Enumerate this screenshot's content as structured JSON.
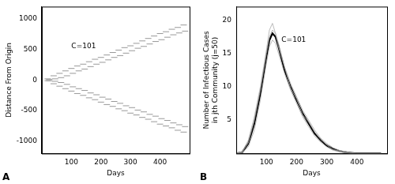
{
  "chart_data": [
    {
      "type": "scatter",
      "title": "A",
      "x_label": "Days",
      "y_label": "Distance From Origin",
      "annotations": [
        {
          "text": "C=101",
          "x": 100,
          "y": 550
        }
      ],
      "xlim": [
        0,
        500
      ],
      "xticks": [
        100,
        200,
        300,
        400
      ],
      "ylim": [
        -1200,
        1200
      ],
      "yticks": [
        -1000,
        -500,
        0,
        500,
        1000
      ],
      "grid": false,
      "series": [
        {
          "color": "#999999",
          "marker": "dash",
          "x": [
            20,
            25,
            40,
            45,
            60,
            65,
            80,
            85,
            100,
            105,
            120,
            125,
            140,
            145,
            160,
            165,
            180,
            185,
            200,
            205,
            220,
            225,
            240,
            245,
            260,
            265,
            280,
            285,
            300,
            305,
            320,
            325,
            340,
            345,
            360,
            365,
            380,
            385,
            400,
            405,
            420,
            425,
            440,
            445,
            460,
            465,
            480,
            485
          ],
          "values": [
            20,
            -10,
            70,
            20,
            110,
            40,
            150,
            70,
            190,
            110,
            230,
            150,
            260,
            180,
            300,
            220,
            340,
            260,
            370,
            290,
            410,
            330,
            450,
            370,
            490,
            400,
            530,
            440,
            560,
            480,
            600,
            520,
            640,
            550,
            680,
            590,
            720,
            630,
            760,
            660,
            790,
            700,
            830,
            740,
            860,
            770,
            900,
            800
          ]
        },
        {
          "color": "#999999",
          "marker": "dash",
          "x": [
            20,
            25,
            40,
            45,
            60,
            65,
            80,
            85,
            100,
            105,
            120,
            125,
            140,
            145,
            160,
            165,
            180,
            185,
            200,
            205,
            220,
            225,
            240,
            245,
            260,
            265,
            280,
            285,
            300,
            305,
            320,
            325,
            340,
            345,
            360,
            365,
            380,
            385,
            400,
            405,
            420,
            425,
            440,
            445,
            460,
            465,
            480,
            485
          ],
          "values": [
            -10,
            10,
            -60,
            -20,
            -100,
            -40,
            -140,
            -70,
            -180,
            -110,
            -220,
            -140,
            -250,
            -170,
            -290,
            -210,
            -320,
            -240,
            -360,
            -280,
            -400,
            -310,
            -430,
            -350,
            -470,
            -380,
            -500,
            -420,
            -540,
            -450,
            -570,
            -490,
            -610,
            -520,
            -640,
            -560,
            -680,
            -590,
            -720,
            -630,
            -750,
            -660,
            -780,
            -700,
            -820,
            -730,
            -850,
            -760
          ]
        }
      ]
    },
    {
      "type": "line",
      "title": "B",
      "x_label": "Days",
      "y_label": "Number of Infectious Cases in jth Community (j=50)",
      "annotations": [
        {
          "text": "C=101",
          "x": 150,
          "y": 17
        }
      ],
      "xlim": [
        0,
        500
      ],
      "xticks": [
        100,
        200,
        300,
        400
      ],
      "ylim": [
        0,
        22
      ],
      "yticks": [
        5,
        10,
        15,
        20
      ],
      "grid": false,
      "series": [
        {
          "color": "#aaaaaa",
          "line_style": "solid",
          "x": [
            0,
            20,
            40,
            60,
            80,
            100,
            110,
            120,
            130,
            140,
            160,
            180,
            200,
            220,
            240,
            260,
            280,
            300,
            320,
            340,
            360,
            380,
            400,
            440,
            480
          ],
          "values": [
            0,
            0.3,
            2,
            5.5,
            10,
            15.5,
            18.5,
            19.5,
            18,
            16.5,
            13,
            10.5,
            8.5,
            6.5,
            5,
            3.5,
            2.3,
            1.5,
            0.9,
            0.5,
            0.3,
            0.1,
            0,
            0,
            0
          ]
        },
        {
          "color": "#aaaaaa",
          "line_style": "solid",
          "x": [
            0,
            20,
            40,
            60,
            80,
            100,
            110,
            120,
            130,
            140,
            160,
            180,
            200,
            220,
            240,
            260,
            280,
            300,
            320,
            340,
            360,
            380,
            400,
            440,
            480
          ],
          "values": [
            0,
            0.1,
            1,
            3.5,
            8,
            13.5,
            16,
            17,
            16.5,
            15,
            12,
            9.5,
            7.5,
            5.5,
            4,
            2.6,
            1.7,
            1,
            0.5,
            0.3,
            0.1,
            0,
            0,
            0,
            0
          ]
        },
        {
          "color": "#aaaaaa",
          "line_style": "solid",
          "x": [
            0,
            20,
            40,
            60,
            80,
            100,
            110,
            120,
            130,
            140,
            160,
            180,
            200,
            220,
            240,
            260,
            280,
            300,
            320,
            340,
            360,
            380,
            400,
            440,
            480
          ],
          "values": [
            0,
            0.2,
            1.6,
            5,
            9.5,
            15,
            17.5,
            18.5,
            18,
            16,
            13,
            9.8,
            8.2,
            5.8,
            4.7,
            3.2,
            2.1,
            1.3,
            0.6,
            0.4,
            0.2,
            0.1,
            0,
            0,
            0
          ]
        },
        {
          "color": "#000000",
          "line_style": "solid",
          "x": [
            0,
            20,
            40,
            60,
            80,
            100,
            110,
            120,
            130,
            140,
            160,
            180,
            200,
            220,
            240,
            260,
            280,
            300,
            320,
            340,
            360,
            380,
            400,
            440,
            480
          ],
          "values": [
            0,
            0.2,
            1.5,
            4.5,
            9,
            14.5,
            17,
            18,
            17.5,
            16,
            12.5,
            10,
            8,
            6,
            4.5,
            3,
            2,
            1.2,
            0.7,
            0.4,
            0.2,
            0.1,
            0,
            0,
            0
          ]
        }
      ]
    }
  ]
}
